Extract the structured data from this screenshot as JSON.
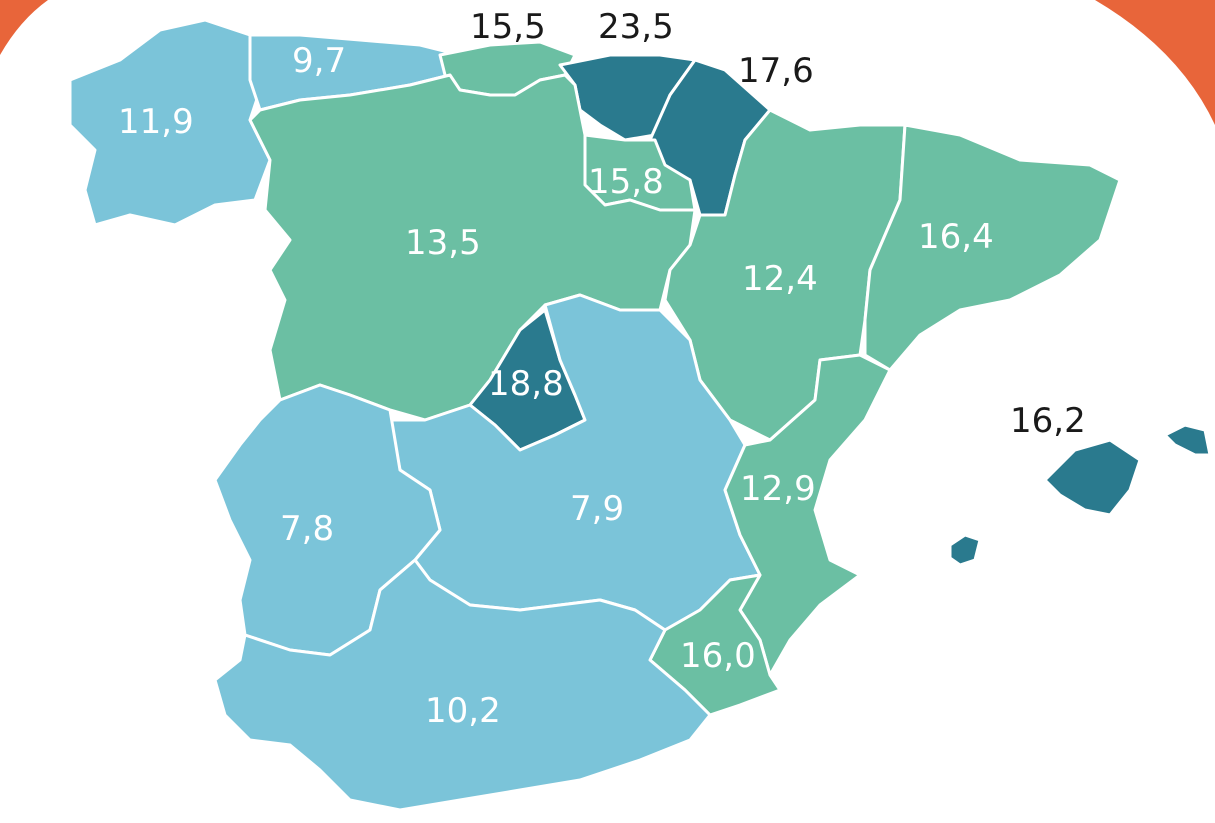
{
  "colors": {
    "light_blue": "#7bc4d9",
    "green": "#6bbfa3",
    "dark_teal": "#2a7a8e",
    "orange_arc": "#e8653a",
    "label_light": "#ffffff",
    "label_dark": "#1a1a1a"
  },
  "regions": [
    {
      "id": "galicia",
      "value": "11,9",
      "class": "light_blue"
    },
    {
      "id": "asturias",
      "value": "9,7",
      "class": "light_blue"
    },
    {
      "id": "cantabria",
      "value": "15,5",
      "class": "green"
    },
    {
      "id": "pais-vasco",
      "value": "23,5",
      "class": "dark_teal"
    },
    {
      "id": "navarra",
      "value": "17,6",
      "class": "dark_teal"
    },
    {
      "id": "la-rioja",
      "value": "15,8",
      "class": "green"
    },
    {
      "id": "castilla-y-leon",
      "value": "13,5",
      "class": "green"
    },
    {
      "id": "aragon",
      "value": "12,4",
      "class": "green"
    },
    {
      "id": "cataluna",
      "value": "16,4",
      "class": "green"
    },
    {
      "id": "madrid",
      "value": "18,8",
      "class": "dark_teal"
    },
    {
      "id": "extremadura",
      "value": "7,8",
      "class": "light_blue"
    },
    {
      "id": "castilla-la-mancha",
      "value": "7,9",
      "class": "light_blue"
    },
    {
      "id": "valencia",
      "value": "12,9",
      "class": "green"
    },
    {
      "id": "murcia",
      "value": "16,0",
      "class": "green"
    },
    {
      "id": "andalucia",
      "value": "10,2",
      "class": "light_blue"
    },
    {
      "id": "baleares",
      "value": "16,2",
      "class": "dark_teal"
    }
  ]
}
